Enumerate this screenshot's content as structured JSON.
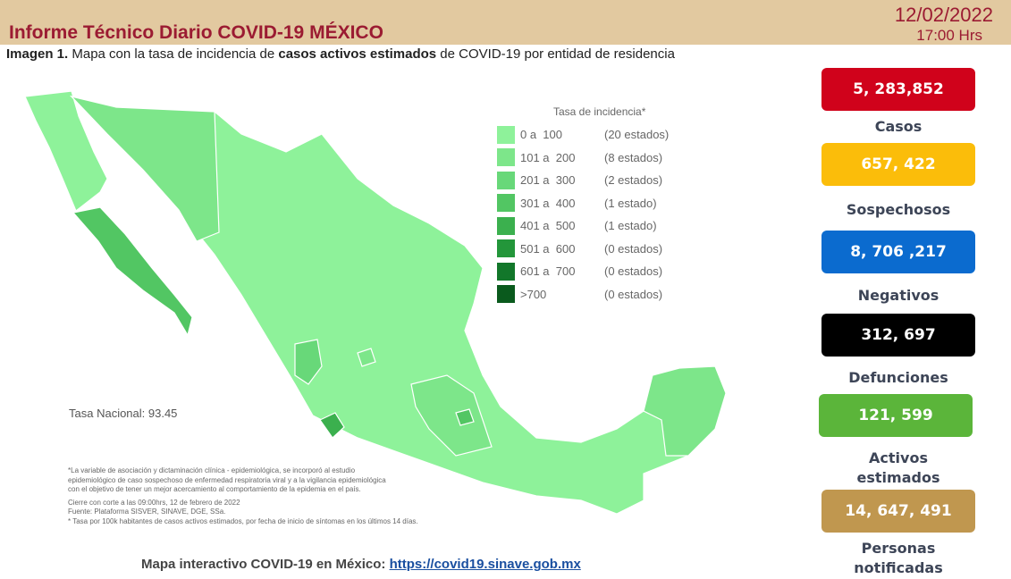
{
  "header": {
    "title": "Informe Técnico Diario COVID-19 MÉXICO",
    "date": "12/02/2022",
    "time": "17:00 Hrs"
  },
  "subtitle": {
    "lead": "Imagen 1.",
    "part1": " Mapa con la tasa de incidencia de ",
    "bold": "casos activos estimados",
    "part2": " de COVID-19 por entidad de residencia"
  },
  "legend": {
    "title": "Tasa de incidencia*",
    "items": [
      {
        "range": "0 a  100",
        "count": "(20 estados)",
        "color": "#8ef29a"
      },
      {
        "range": "101 a  200",
        "count": "(8 estados)",
        "color": "#7de68a"
      },
      {
        "range": "201 a  300",
        "count": "(2 estados)",
        "color": "#68d879"
      },
      {
        "range": "301 a  400",
        "count": "(1 estado)",
        "color": "#52c663"
      },
      {
        "range": "401 a  500",
        "count": "(1 estado)",
        "color": "#3bb04e"
      },
      {
        "range": "501 a  600",
        "count": "(0 estados)",
        "color": "#23963a"
      },
      {
        "range": "601 a  700",
        "count": "(0 estados)",
        "color": "#12772a"
      },
      {
        "range": ">700",
        "count": "(0 estados)",
        "color": "#0a5a1d"
      }
    ]
  },
  "tasa_nacional": "Tasa Nacional: 93.45",
  "notes": [
    "*La variable de asociación y dictaminación clínica - epidemiológica, se incorporó al estudio",
    "epidemiológico de caso sospechoso de enfermedad respiratoria viral y a la vigilancia epidemiológica",
    "con el objetivo de tener un mejor acercamiento al comportamiento de la epidemia en el país.",
    "Cierre con corte a las 09:00hrs, 12 de febrero de 2022",
    "Fuente: Plataforma SISVER, SINAVE, DGE, SSa.",
    "* Tasa por 100k habitantes de casos activos estimados, por fecha de inicio de síntomas en los últimos 14 días."
  ],
  "footer": {
    "text": "Mapa interactivo COVID-19 en México: ",
    "link": "https://covid19.sinave.gob.mx"
  },
  "stats": [
    {
      "value": "5, 283,852",
      "label": "Casos",
      "color": "#d0021b"
    },
    {
      "value": "657, 422",
      "label": "Sospechosos",
      "color": "#fbbd0a"
    },
    {
      "value": "8, 706 ,217",
      "label": "Negativos",
      "color": "#0b6bcf"
    },
    {
      "value": "312, 697",
      "label": "Defunciones",
      "color": "#000000"
    },
    {
      "value": "121, 599",
      "label": "Activos estimados",
      "color": "#5bb53a"
    },
    {
      "value": "14, 647, 491",
      "label": "Personas notificadas",
      "color": "#c0974f"
    }
  ]
}
